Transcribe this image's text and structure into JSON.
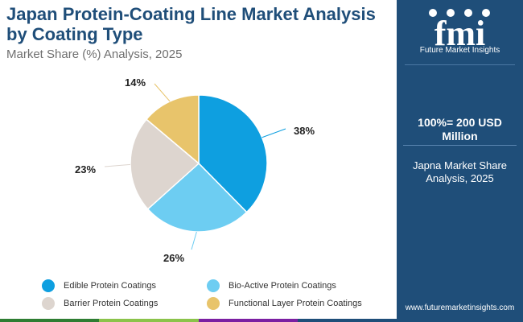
{
  "header": {
    "title": "Japan Protein-Coating Line Market Analysis by Coating Type",
    "subtitle": "Market Share (%) Analysis, 2025"
  },
  "chart_data": {
    "type": "pie",
    "title": "Japan Protein-Coating Line Market Analysis by Coating Type",
    "subtitle": "Market Share (%) Analysis, 2025",
    "categories": [
      "Edible Protein Coatings",
      "Bio-Active Protein Coatings",
      "Barrier Protein Coatings",
      "Functional Layer Protein Coatings"
    ],
    "values": [
      38,
      26,
      23,
      14
    ],
    "labels": [
      "38%",
      "26%",
      "23%",
      "14%"
    ],
    "colors": [
      "#0e9fe0",
      "#6dcdf2",
      "#ddd5cf",
      "#e8c46b"
    ],
    "legend_position": "bottom"
  },
  "sidebar": {
    "brand_mark": "fmi",
    "brand_name": "Future Market Insights",
    "total": "100%= 200 USD Million",
    "note": "Japna Market Share Analysis, 2025",
    "website": "www.futuremarketinsights.com"
  },
  "colors": {
    "title": "#1f4e79",
    "panel": "#1f4e79",
    "stripe": [
      "#2e7d32",
      "#8bc34a",
      "#7b1fa2",
      "#1f4e79"
    ]
  }
}
